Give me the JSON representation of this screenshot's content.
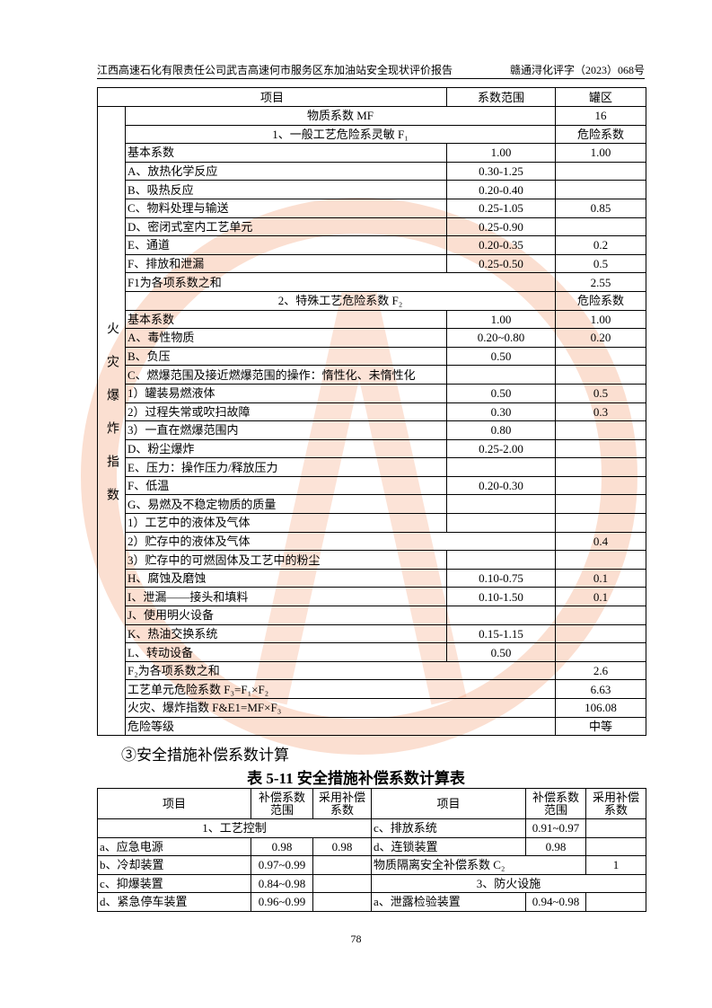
{
  "header": {
    "left": "江西高速石化有限责任公司武吉高速何市服务区东加油站安全现状评价报告",
    "right": "赣通浔化评字（2023）068号"
  },
  "table1": {
    "header": [
      "项目",
      "系数范围",
      "罐区"
    ],
    "side_label": "火灾爆炸指数",
    "rows": [
      {
        "item": "物质系数 MF",
        "value": "16"
      },
      {
        "item": "1、一般工艺危险系灵敏 F₁",
        "value": "危险系数"
      },
      {
        "item": "基本系数",
        "range": "1.00",
        "value": "1.00"
      },
      {
        "item": "A、放热化学反应",
        "range": "0.30-1.25"
      },
      {
        "item": "B、吸热反应",
        "range": "0.20-0.40"
      },
      {
        "item": "C、物料处理与输送",
        "range": "0.25-1.05",
        "value": "0.85"
      },
      {
        "item": "D、密闭式室内工艺单元",
        "range": "0.25-0.90"
      },
      {
        "item": "E、通道",
        "range": "0.20-0.35",
        "value": "0.2"
      },
      {
        "item": "F、排放和泄漏",
        "range": "0.25-0.50",
        "value": "0.5"
      },
      {
        "item": "F1为各项系数之和",
        "value": "2.55"
      },
      {
        "item": "2、特殊工艺危险系数 F₂",
        "value": "危险系数"
      },
      {
        "item": "基本系数",
        "range": "1.00",
        "value": "1.00"
      },
      {
        "item": "A、毒性物质",
        "range": "0.20~0.80",
        "value": "0.20"
      },
      {
        "item": "B、负压",
        "range": "0.50"
      },
      {
        "item": "C、燃爆范围及接近燃爆范围的操作：惰性化、未惰性化"
      },
      {
        "item": "1）罐装易燃液体",
        "range": "0.50",
        "value": "0.5"
      },
      {
        "item": "2）过程失常或吹扫故障",
        "range": "0.30",
        "value": "0.3"
      },
      {
        "item": "3）一直在燃爆范围内",
        "range": "0.80"
      },
      {
        "item": "D、粉尘爆炸",
        "range": "0.25-2.00"
      },
      {
        "item": "E、压力：操作压力/释放压力"
      },
      {
        "item": "F、低温",
        "range": "0.20-0.30"
      },
      {
        "item": "G、易燃及不稳定物质的质量"
      },
      {
        "item": "1）工艺中的液体及气体"
      },
      {
        "item": "2）贮存中的液体及气体",
        "value": "0.4"
      },
      {
        "item": "3）贮存中的可燃固体及工艺中的粉尘"
      },
      {
        "item": "H、腐蚀及磨蚀",
        "range": "0.10-0.75",
        "value": "0.1"
      },
      {
        "item": "I、泄漏——接头和填料",
        "range": "0.10-1.50",
        "value": "0.1"
      },
      {
        "item": "J、使用明火设备"
      },
      {
        "item": "K、热油交换系统",
        "range": "0.15-1.15"
      },
      {
        "item": "L、转动设备",
        "range": "0.50"
      },
      {
        "item": "F₂为各项系数之和",
        "value": "2.6"
      },
      {
        "item": "工艺单元危险系数 F₃=F₁×F₂",
        "value": "6.63"
      },
      {
        "item": "火灾、爆炸指数 F&E1=MF×F₃",
        "value": "106.08"
      },
      {
        "item": "危险等级",
        "value": "中等"
      }
    ]
  },
  "section_heading": "③安全措施补偿系数计算",
  "table2": {
    "title": "表 5-11  安全措施补偿系数计算表",
    "header": [
      "项目",
      "补偿系数范围",
      "采用补偿系数",
      "项目",
      "补偿系数范围",
      "采用补偿系数"
    ],
    "rows": [
      [
        "1、工艺控制",
        "c、排放系统",
        "0.91~0.97"
      ],
      [
        "a、应急电源",
        "0.98",
        "0.98",
        "d、连锁装置",
        "0.98"
      ],
      [
        "b、冷却装置",
        "0.97~0.99",
        "物质隔离安全补偿系数 C₂",
        "1"
      ],
      [
        "c、抑爆装置",
        "0.84~0.98",
        "3、防火设施"
      ],
      [
        "d、紧急停车装置",
        "0.96~0.99",
        "a、泄露检验装置",
        "0.94~0.98"
      ]
    ]
  },
  "page_number": "78"
}
